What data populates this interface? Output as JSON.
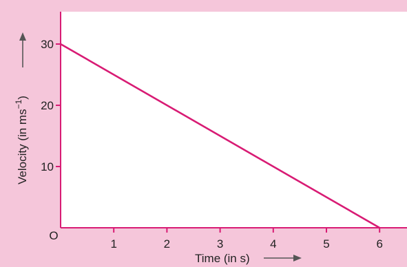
{
  "chart_data": {
    "type": "line",
    "xlabel": "Time (in s)",
    "ylabel_main": "Velocity (in ms",
    "ylabel_sup": "−1",
    "ylabel_end": ")",
    "origin_label": "O",
    "xlim": [
      0,
      6.5
    ],
    "ylim": [
      0,
      35
    ],
    "x_ticks": [
      1,
      2,
      3,
      4,
      5,
      6
    ],
    "y_ticks": [
      10,
      20,
      30
    ],
    "grid": false,
    "series": [
      {
        "x": [
          0,
          6
        ],
        "y": [
          30,
          0
        ]
      }
    ],
    "colors": {
      "background": "#f5c6da",
      "plot_area": "#ffffff",
      "axis": "#d81b74",
      "line": "#d81b74",
      "arrow": "#555555"
    }
  }
}
